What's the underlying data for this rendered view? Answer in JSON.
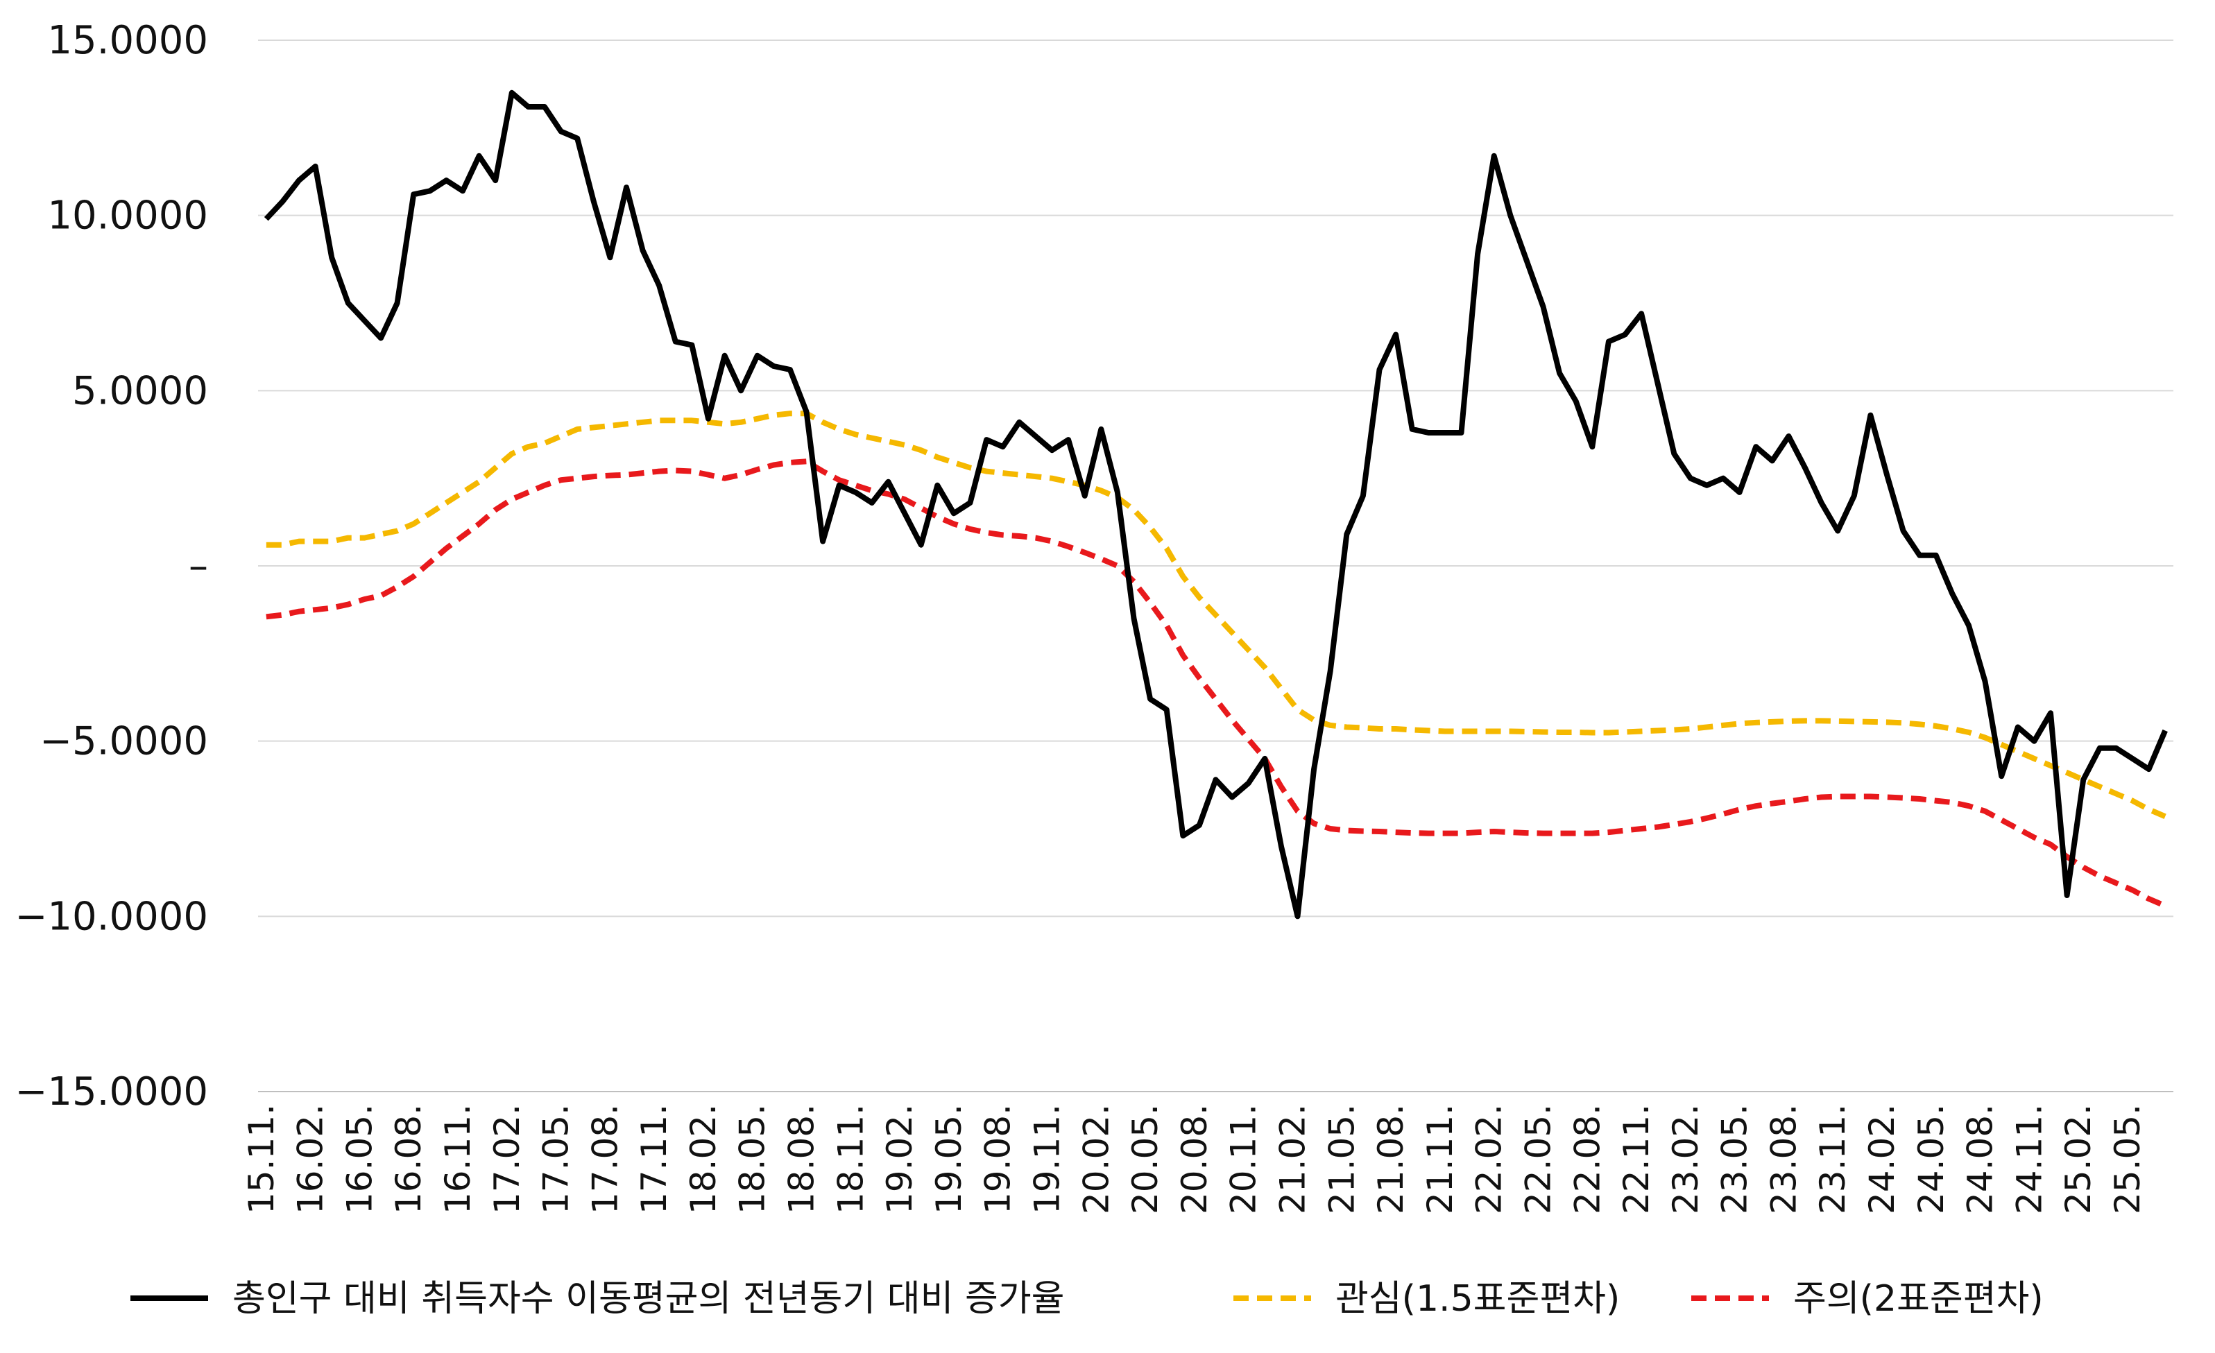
{
  "chart_data": {
    "type": "line",
    "ylim": [
      -15,
      15
    ],
    "y_ticks": [
      {
        "value": 15,
        "label": "15.0000"
      },
      {
        "value": 10,
        "label": "10.0000"
      },
      {
        "value": 5,
        "label": "5.0000"
      },
      {
        "value": 0,
        "label": "–"
      },
      {
        "value": -5,
        "label": "−5.0000"
      },
      {
        "value": -10,
        "label": "−10.0000"
      },
      {
        "value": -15,
        "label": "−15.0000"
      }
    ],
    "grid": true,
    "legend_position": "bottom",
    "x_tick_labels": [
      "15.11.",
      "16.02.",
      "16.05.",
      "16.08.",
      "16.11.",
      "17.02.",
      "17.05.",
      "17.08.",
      "17.11.",
      "18.02.",
      "18.05.",
      "18.08.",
      "18.11.",
      "19.02.",
      "19.05.",
      "19.08.",
      "19.11.",
      "20.02.",
      "20.05.",
      "20.08.",
      "20.11.",
      "21.02.",
      "21.05.",
      "21.08.",
      "21.11.",
      "22.02.",
      "22.05.",
      "22.08.",
      "22.11.",
      "23.02.",
      "23.05.",
      "23.08.",
      "23.11.",
      "24.02.",
      "24.05.",
      "24.08.",
      "24.11.",
      "25.02.",
      "25.05."
    ],
    "x_tick_interval": 3,
    "series": [
      {
        "name": "총인구 대비 취득자수 이동평균의 전년동기 대비 증가율",
        "color": "#000000",
        "dash": "solid",
        "values": [
          9.9,
          10.4,
          11.0,
          11.4,
          8.8,
          7.5,
          7.0,
          6.5,
          7.5,
          10.6,
          10.7,
          11.0,
          10.7,
          11.7,
          11.0,
          13.5,
          13.1,
          13.1,
          12.4,
          12.2,
          10.4,
          8.8,
          10.8,
          9.0,
          8.0,
          6.4,
          6.3,
          4.2,
          6.0,
          5.0,
          6.0,
          5.7,
          5.6,
          4.4,
          0.7,
          2.3,
          2.1,
          1.8,
          2.4,
          1.5,
          0.6,
          2.3,
          1.5,
          1.8,
          3.6,
          3.4,
          4.1,
          3.7,
          3.3,
          3.6,
          2.0,
          3.9,
          2.1,
          -1.5,
          -3.8,
          -4.1,
          -7.7,
          -7.4,
          -6.1,
          -6.6,
          -6.2,
          -5.5,
          -8.0,
          -10.0,
          -5.8,
          -3.0,
          0.9,
          2.0,
          5.6,
          6.6,
          3.9,
          3.8,
          3.8,
          3.8,
          8.9,
          11.7,
          10.0,
          8.7,
          7.4,
          5.5,
          4.7,
          3.4,
          6.4,
          6.6,
          7.2,
          5.2,
          3.2,
          2.5,
          2.3,
          2.5,
          2.1,
          3.4,
          3.0,
          3.7,
          2.8,
          1.8,
          1.0,
          2.0,
          4.3,
          2.6,
          1.0,
          0.3,
          0.3,
          -0.8,
          -1.7,
          -3.3,
          -6.0,
          -4.6,
          -5.0,
          -4.2,
          -9.4,
          -6.1,
          -5.2,
          -5.2,
          -5.5,
          -5.8,
          -4.7
        ]
      },
      {
        "name": "관심(1.5표준편차)",
        "color": "#f5b800",
        "dash": "dashed",
        "values": [
          0.6,
          0.6,
          0.7,
          0.7,
          0.7,
          0.8,
          0.8,
          0.9,
          1.0,
          1.2,
          1.5,
          1.8,
          2.1,
          2.4,
          2.8,
          3.2,
          3.4,
          3.5,
          3.7,
          3.9,
          3.95,
          4.0,
          4.05,
          4.1,
          4.15,
          4.15,
          4.15,
          4.1,
          4.05,
          4.1,
          4.2,
          4.3,
          4.35,
          4.35,
          4.1,
          3.9,
          3.75,
          3.65,
          3.55,
          3.45,
          3.3,
          3.1,
          2.95,
          2.8,
          2.7,
          2.65,
          2.6,
          2.55,
          2.5,
          2.4,
          2.3,
          2.15,
          1.95,
          1.6,
          1.1,
          0.5,
          -0.3,
          -0.9,
          -1.4,
          -1.9,
          -2.4,
          -2.9,
          -3.5,
          -4.1,
          -4.4,
          -4.55,
          -4.6,
          -4.62,
          -4.65,
          -4.65,
          -4.68,
          -4.7,
          -4.72,
          -4.72,
          -4.72,
          -4.72,
          -4.72,
          -4.73,
          -4.74,
          -4.75,
          -4.75,
          -4.76,
          -4.76,
          -4.74,
          -4.72,
          -4.7,
          -4.68,
          -4.65,
          -4.6,
          -4.55,
          -4.5,
          -4.47,
          -4.45,
          -4.43,
          -4.42,
          -4.42,
          -4.43,
          -4.44,
          -4.45,
          -4.46,
          -4.48,
          -4.52,
          -4.57,
          -4.65,
          -4.75,
          -4.9,
          -5.1,
          -5.3,
          -5.5,
          -5.7,
          -5.9,
          -6.1,
          -6.3,
          -6.5,
          -6.7,
          -6.95,
          -7.15
        ]
      },
      {
        "name": "주의(2표준편차)",
        "color": "#e8191c",
        "dash": "dashed",
        "values": [
          -1.45,
          -1.4,
          -1.3,
          -1.25,
          -1.2,
          -1.1,
          -0.95,
          -0.85,
          -0.6,
          -0.3,
          0.1,
          0.5,
          0.85,
          1.2,
          1.6,
          1.9,
          2.1,
          2.3,
          2.45,
          2.5,
          2.55,
          2.58,
          2.6,
          2.65,
          2.7,
          2.72,
          2.7,
          2.6,
          2.5,
          2.6,
          2.75,
          2.88,
          2.95,
          2.98,
          2.7,
          2.45,
          2.3,
          2.15,
          2.05,
          1.9,
          1.65,
          1.4,
          1.2,
          1.05,
          0.95,
          0.88,
          0.85,
          0.8,
          0.7,
          0.55,
          0.38,
          0.2,
          0.0,
          -0.45,
          -1.05,
          -1.7,
          -2.55,
          -3.2,
          -3.8,
          -4.4,
          -4.95,
          -5.5,
          -6.3,
          -7.0,
          -7.35,
          -7.5,
          -7.55,
          -7.57,
          -7.58,
          -7.6,
          -7.62,
          -7.63,
          -7.63,
          -7.63,
          -7.6,
          -7.58,
          -7.6,
          -7.62,
          -7.63,
          -7.63,
          -7.63,
          -7.63,
          -7.6,
          -7.55,
          -7.5,
          -7.45,
          -7.38,
          -7.3,
          -7.2,
          -7.08,
          -6.95,
          -6.85,
          -6.78,
          -6.72,
          -6.65,
          -6.6,
          -6.58,
          -6.58,
          -6.58,
          -6.6,
          -6.62,
          -6.65,
          -6.7,
          -6.75,
          -6.85,
          -7.0,
          -7.25,
          -7.5,
          -7.75,
          -7.95,
          -8.3,
          -8.6,
          -8.85,
          -9.05,
          -9.25,
          -9.5,
          -9.7
        ]
      }
    ]
  }
}
